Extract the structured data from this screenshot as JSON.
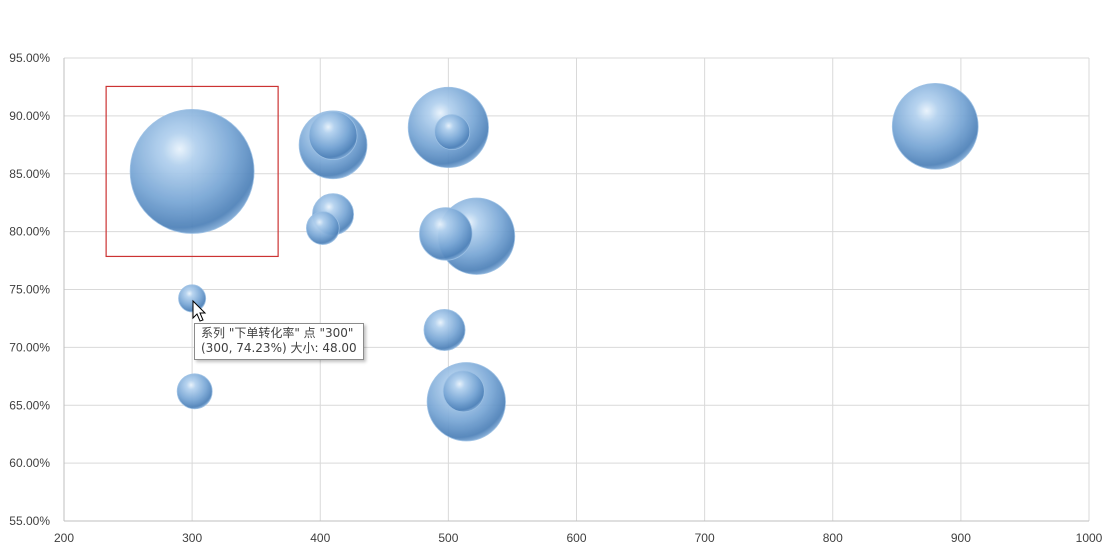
{
  "chart_data": {
    "type": "bubble",
    "x_ticks": [
      "200",
      "300",
      "400",
      "500",
      "600",
      "700",
      "800",
      "900",
      "1000"
    ],
    "y_ticks": [
      "55.00%",
      "60.00%",
      "65.00%",
      "70.00%",
      "75.00%",
      "80.00%",
      "85.00%",
      "90.00%",
      "95.00%"
    ],
    "xlim": [
      200,
      1000
    ],
    "ylim": [
      55,
      95
    ],
    "y_unit": "%",
    "grid": true,
    "bubble_color": "#7aa7d6",
    "highlight_color": "#cc3333",
    "points": [
      {
        "x": 300,
        "y": 85.2,
        "size": 1000
      },
      {
        "x": 300,
        "y": 74.23,
        "size": 48
      },
      {
        "x": 302,
        "y": 66.2,
        "size": 80
      },
      {
        "x": 402,
        "y": 80.3,
        "size": 70
      },
      {
        "x": 410,
        "y": 81.5,
        "size": 110
      },
      {
        "x": 410,
        "y": 87.5,
        "size": 300
      },
      {
        "x": 410,
        "y": 88.3,
        "size": 150
      },
      {
        "x": 500,
        "y": 89.0,
        "size": 420
      },
      {
        "x": 503,
        "y": 88.6,
        "size": 80
      },
      {
        "x": 498,
        "y": 79.8,
        "size": 180
      },
      {
        "x": 522,
        "y": 79.6,
        "size": 380
      },
      {
        "x": 497,
        "y": 71.5,
        "size": 110
      },
      {
        "x": 514,
        "y": 65.3,
        "size": 400
      },
      {
        "x": 512,
        "y": 66.2,
        "size": 110
      },
      {
        "x": 880,
        "y": 89.1,
        "size": 480
      }
    ],
    "highlighted_point": 0,
    "tooltip": {
      "line1": "系列 \"下单转化率\" 点 \"300\"",
      "line2": "(300, 74.23%) 大小: 48.00"
    }
  }
}
